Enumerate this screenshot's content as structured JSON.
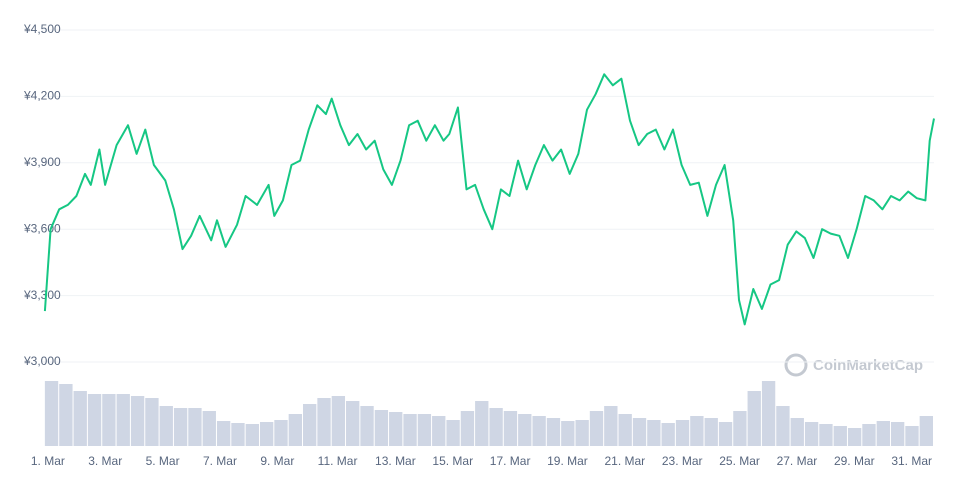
{
  "chart_data": {
    "type": "line",
    "watermark": "CoinMarketCap",
    "color": "#16c784",
    "x": [
      1.0,
      1.2,
      1.5,
      1.8,
      2.1,
      2.4,
      2.6,
      2.9,
      3.1,
      3.5,
      3.9,
      4.2,
      4.5,
      4.8,
      5.2,
      5.5,
      5.8,
      6.1,
      6.4,
      6.8,
      7.0,
      7.3,
      7.7,
      8.0,
      8.4,
      8.8,
      9.0,
      9.3,
      9.6,
      9.9,
      10.2,
      10.5,
      10.8,
      11.0,
      11.3,
      11.6,
      11.9,
      12.2,
      12.5,
      12.8,
      13.1,
      13.4,
      13.7,
      14.0,
      14.3,
      14.6,
      14.9,
      15.1,
      15.4,
      15.7,
      16.0,
      16.3,
      16.6,
      16.9,
      17.2,
      17.5,
      17.8,
      18.1,
      18.4,
      18.7,
      19.0,
      19.3,
      19.6,
      19.9,
      20.2,
      20.5,
      20.8,
      21.1,
      21.4,
      21.7,
      22.0,
      22.3,
      22.6,
      22.9,
      23.2,
      23.5,
      23.8,
      24.1,
      24.4,
      24.7,
      25.0,
      25.2,
      25.4,
      25.7,
      26.0,
      26.3,
      26.6,
      26.9,
      27.2,
      27.5,
      27.8,
      28.1,
      28.4,
      28.7,
      29.0,
      29.3,
      29.6,
      29.9,
      30.2,
      30.5,
      30.8,
      31.1,
      31.4,
      31.7,
      31.85,
      32.0
    ],
    "values": [
      3230,
      3600,
      3690,
      3710,
      3750,
      3850,
      3800,
      3960,
      3800,
      3980,
      4070,
      3940,
      4050,
      3890,
      3820,
      3690,
      3510,
      3570,
      3660,
      3550,
      3640,
      3520,
      3620,
      3750,
      3710,
      3800,
      3660,
      3730,
      3890,
      3910,
      4050,
      4160,
      4120,
      4190,
      4070,
      3980,
      4030,
      3960,
      4000,
      3870,
      3800,
      3910,
      4070,
      4090,
      4000,
      4070,
      4000,
      4030,
      4150,
      3780,
      3800,
      3690,
      3600,
      3780,
      3750,
      3910,
      3780,
      3890,
      3980,
      3910,
      3960,
      3850,
      3940,
      4140,
      4210,
      4300,
      4250,
      4280,
      4090,
      3980,
      4030,
      4050,
      3960,
      4050,
      3890,
      3800,
      3810,
      3660,
      3800,
      3890,
      3640,
      3280,
      3170,
      3330,
      3240,
      3350,
      3370,
      3530,
      3590,
      3560,
      3470,
      3600,
      3580,
      3570,
      3470,
      3600,
      3750,
      3730,
      3690,
      3750,
      3730,
      3770,
      3740,
      3730,
      4000,
      4100
    ],
    "xlim": [
      0.9,
      32.0
    ],
    "xticks": [
      {
        "value": 1,
        "label": "1. Mar"
      },
      {
        "value": 3,
        "label": "3. Mar"
      },
      {
        "value": 5,
        "label": "5. Mar"
      },
      {
        "value": 7,
        "label": "7. Mar"
      },
      {
        "value": 9,
        "label": "9. Mar"
      },
      {
        "value": 11,
        "label": "11. Mar"
      },
      {
        "value": 13,
        "label": "13. Mar"
      },
      {
        "value": 15,
        "label": "15. Mar"
      },
      {
        "value": 17,
        "label": "17. Mar"
      },
      {
        "value": 19,
        "label": "19. Mar"
      },
      {
        "value": 21,
        "label": "21. Mar"
      },
      {
        "value": 23,
        "label": "23. Mar"
      },
      {
        "value": 25,
        "label": "25. Mar"
      },
      {
        "value": 27,
        "label": "27. Mar"
      },
      {
        "value": 29,
        "label": "29. Mar"
      },
      {
        "value": 31,
        "label": "31. Mar"
      }
    ],
    "ylim": [
      3000,
      4500
    ],
    "yticks": [
      {
        "value": 3000,
        "label": "¥3,000"
      },
      {
        "value": 3300,
        "label": "¥3,300"
      },
      {
        "value": 3600,
        "label": "¥3,600"
      },
      {
        "value": 3900,
        "label": "¥3,900"
      },
      {
        "value": 4200,
        "label": "¥4,200"
      },
      {
        "value": 4500,
        "label": "¥4,500"
      }
    ],
    "grid": true,
    "volume": {
      "color": "#cfd6e4",
      "ylim": [
        0,
        70
      ],
      "x": [
        1.0,
        1.5,
        2.0,
        2.5,
        3.0,
        3.5,
        4.0,
        4.5,
        5.0,
        5.5,
        6.0,
        6.5,
        7.0,
        7.5,
        8.0,
        8.5,
        9.0,
        9.5,
        10.0,
        10.5,
        11.0,
        11.5,
        12.0,
        12.5,
        13.0,
        13.5,
        14.0,
        14.5,
        15.0,
        15.5,
        16.0,
        16.5,
        17.0,
        17.5,
        18.0,
        18.5,
        19.0,
        19.5,
        20.0,
        20.5,
        21.0,
        21.5,
        22.0,
        22.5,
        23.0,
        23.5,
        24.0,
        24.5,
        25.0,
        25.5,
        26.0,
        26.5,
        27.0,
        27.5,
        28.0,
        28.5,
        29.0,
        29.5,
        30.0,
        30.5,
        31.0,
        31.5
      ],
      "values": [
        65,
        62,
        55,
        52,
        52,
        52,
        50,
        48,
        40,
        38,
        38,
        35,
        25,
        23,
        22,
        24,
        26,
        32,
        42,
        48,
        50,
        45,
        40,
        36,
        34,
        32,
        32,
        30,
        26,
        35,
        45,
        38,
        35,
        32,
        30,
        28,
        25,
        26,
        35,
        40,
        32,
        28,
        26,
        23,
        26,
        30,
        28,
        24,
        35,
        55,
        65,
        40,
        28,
        24,
        22,
        20,
        18,
        22,
        25,
        24,
        20,
        30
      ]
    }
  }
}
